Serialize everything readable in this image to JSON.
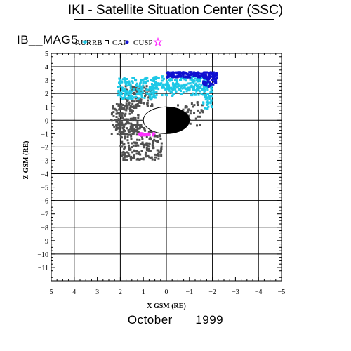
{
  "header": {
    "title": "IKI - Satellite Situation Center (SSC)"
  },
  "satellite": {
    "name": "IB__MAG5"
  },
  "footer": {
    "month": "October",
    "year": "1999"
  },
  "colors": {
    "AUR": "#1ec8e6",
    "RB": "#505050",
    "CAP": "#707070",
    "CUSP": "#1010d0",
    "MSH": "#ff30ff",
    "background": "#ffffff",
    "axes": "#000000"
  },
  "chart_data": {
    "type": "scatter",
    "title": "",
    "xlabel": "X GSM (RE)",
    "ylabel": "Z GSM (RE)",
    "xlim": [
      5,
      -5
    ],
    "ylim": [
      -12,
      5
    ],
    "x_ticks": [
      "5",
      "4",
      "3",
      "2",
      "1",
      "0",
      "−1",
      "−2",
      "−3",
      "−4",
      "−5"
    ],
    "y_ticks": [
      "5",
      "4",
      "3",
      "2",
      "1",
      "0",
      "−1",
      "−2",
      "−3",
      "−4",
      "−5",
      "−6",
      "−7",
      "−8",
      "−9",
      "−10",
      "−11"
    ],
    "grid": true,
    "legend": {
      "placement": "top",
      "entries": [
        {
          "key": "AUR",
          "label": "AUR",
          "marker": "asterisk"
        },
        {
          "key": "RB",
          "label": "RB",
          "marker": "square"
        },
        {
          "key": "CAP",
          "label": "CAP",
          "marker": "dot"
        },
        {
          "key": "CUSP",
          "label": "CUSP",
          "marker": "star"
        }
      ]
    },
    "earth": {
      "center": [
        0,
        0
      ],
      "radius": 1,
      "night_side": "negative-x"
    },
    "series": [
      {
        "key": "RB",
        "regions": [
          {
            "x": [
              1.2,
              2.4
            ],
            "z": [
              -1.1,
              1.2
            ],
            "n": 160
          },
          {
            "x": [
              0.2,
              2.0
            ],
            "z": [
              -3.0,
              -0.3
            ],
            "n": 220
          },
          {
            "x": [
              0.6,
              1.8
            ],
            "z": [
              1.0,
              2.6
            ],
            "n": 90
          },
          {
            "x": [
              -1.6,
              -0.4
            ],
            "z": [
              -0.4,
              1.4
            ],
            "n": 50
          }
        ]
      },
      {
        "key": "AUR",
        "regions": [
          {
            "x": [
              0.4,
              2.1
            ],
            "z": [
              1.6,
              3.2
            ],
            "n": 200
          },
          {
            "x": [
              -1.8,
              0.6
            ],
            "z": [
              2.3,
              3.3
            ],
            "n": 180
          },
          {
            "x": [
              -2.0,
              -1.6
            ],
            "z": [
              0.8,
              2.8
            ],
            "n": 60
          },
          {
            "x": [
              -1.6,
              0.2
            ],
            "z": [
              1.8,
              2.6
            ],
            "n": 60
          }
        ]
      },
      {
        "key": "CUSP",
        "regions": [
          {
            "x": [
              -2.2,
              0.0
            ],
            "z": [
              3.2,
              3.6
            ],
            "n": 160
          },
          {
            "x": [
              -2.2,
              -1.6
            ],
            "z": [
              2.5,
              3.3
            ],
            "n": 60
          }
        ]
      },
      {
        "key": "MSH",
        "regions": [
          {
            "x": [
              0.5,
              1.2
            ],
            "z": [
              -1.15,
              -0.95
            ],
            "n": 30
          }
        ]
      }
    ]
  }
}
